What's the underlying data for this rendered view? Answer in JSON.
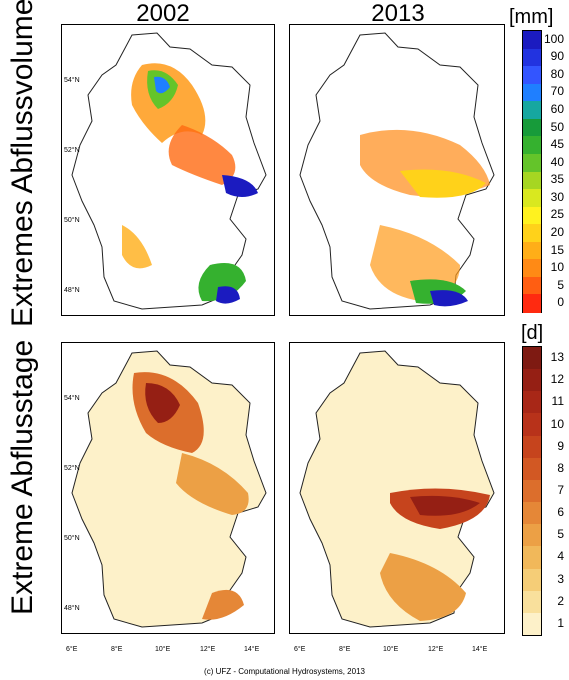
{
  "columns": [
    "2002",
    "2013"
  ],
  "rows": [
    "Extremes Abflussvolumen",
    "Extreme Abflusstage"
  ],
  "lat_labels": [
    "54°N",
    "52°N",
    "50°N",
    "48°N"
  ],
  "lon_labels": [
    "6°E",
    "8°E",
    "10°E",
    "12°E",
    "14°E"
  ],
  "colorbar_volume": {
    "unit": "[mm]",
    "labels": [
      "100",
      "90",
      "80",
      "70",
      "60",
      "50",
      "45",
      "40",
      "35",
      "30",
      "25",
      "20",
      "15",
      "10",
      "5",
      "0"
    ],
    "colors": [
      "#1b1bc0",
      "#2233e0",
      "#3355ff",
      "#1f7fff",
      "#16a7a0",
      "#179b3a",
      "#35b12f",
      "#64c42a",
      "#a6d622",
      "#d9e81f",
      "#fff21f",
      "#ffd21a",
      "#ffae18",
      "#ff8a15",
      "#ff5e12",
      "#ff2a10"
    ]
  },
  "colorbar_days": {
    "unit": "[d]",
    "labels": [
      "13",
      "12",
      "11",
      "10",
      "9",
      "8",
      "7",
      "6",
      "5",
      "4",
      "3",
      "2",
      "1"
    ],
    "colors": [
      "#7e1a12",
      "#951f14",
      "#a82717",
      "#b8321a",
      "#c6441d",
      "#d25823",
      "#dc6e2c",
      "#e58737",
      "#eca045",
      "#f1b85a",
      "#f5cd77",
      "#f9e09c",
      "#fdf1c9"
    ]
  },
  "credit": "(c) UFZ - Computational Hydrosystems, 2013"
}
